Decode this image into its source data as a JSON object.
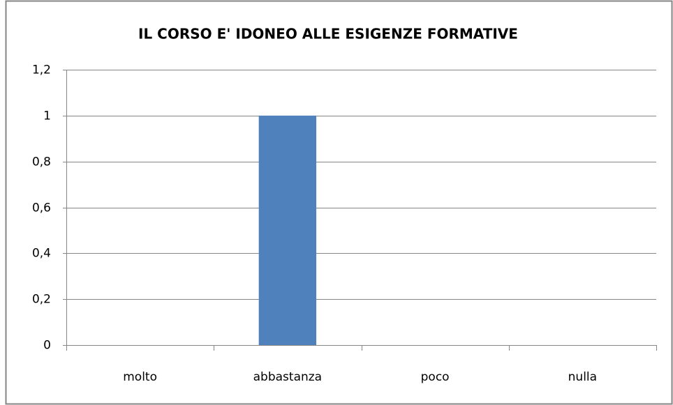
{
  "chart_data": {
    "type": "bar",
    "title": "IL CORSO E' IDONEO ALLE ESIGENZE FORMATIVE",
    "categories": [
      "molto",
      "abbastanza",
      "poco",
      "nulla"
    ],
    "values": [
      0,
      1,
      0,
      0
    ],
    "color": "#4f81bd",
    "ylim": [
      0,
      1.2
    ],
    "yticks": [
      0,
      {
        "value": 0.2,
        "label": "0,2"
      },
      {
        "value": 0.4,
        "label": "0,4"
      },
      {
        "value": 0.6,
        "label": "0,6"
      },
      {
        "value": 0.8,
        "label": "0,8"
      },
      1,
      {
        "value": 1.2,
        "label": "1,2"
      }
    ],
    "grid": true
  }
}
